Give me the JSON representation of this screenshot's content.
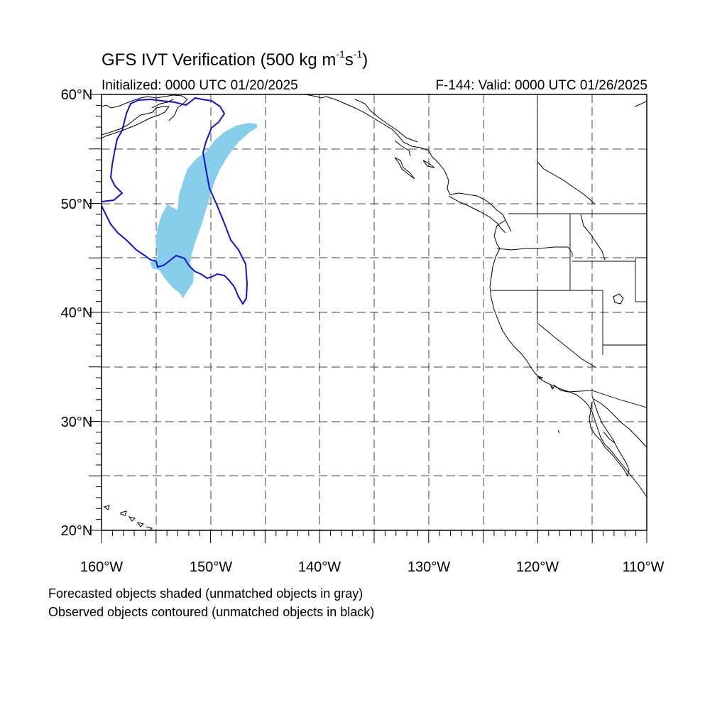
{
  "title": {
    "prefix": "GFS IVT Verification (500 kg m",
    "exp1": "-1",
    "mid": "s",
    "exp2": "-1",
    "suffix": ")"
  },
  "initialized": "Initialized: 0000 UTC 01/20/2025",
  "valid": "F-144: Valid: 0000 UTC 01/26/2025",
  "notes": {
    "forecast": "Forecasted objects shaded (unmatched objects in gray)",
    "observed": "Observed objects contoured (unmatched objects in black)"
  },
  "map": {
    "lon_range": [
      -160,
      -110
    ],
    "lat_range": [
      20,
      60
    ],
    "lon_labels": [
      "160°W",
      "150°W",
      "140°W",
      "130°W",
      "120°W",
      "110°W"
    ],
    "lat_labels": [
      "60°N",
      "50°N",
      "40°N",
      "30°N",
      "20°N"
    ],
    "grid_spacing_deg": 5,
    "colors": {
      "forecast_fill": "#87ceeb",
      "observed_contour": "#1010dd",
      "coastline": "#000000",
      "grid": "#444444"
    }
  }
}
